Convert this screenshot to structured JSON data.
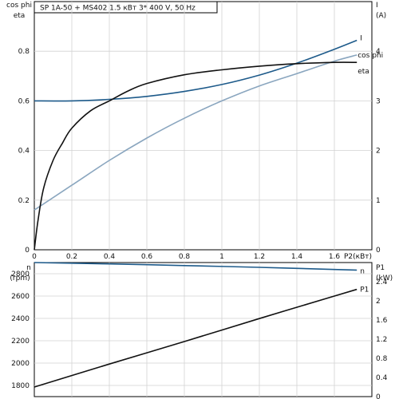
{
  "chart_data": [
    {
      "type": "line",
      "title": "SP 1A-50 + MS402    1.5 кВт   3* 400 V, 50 Hz",
      "xlabel": "P2(кВт)",
      "xlim": [
        0,
        1.8
      ],
      "x_ticks": [
        "0",
        "0.2",
        "0.4",
        "0.6",
        "0.8",
        "1",
        "1.2",
        "1.4",
        "1.6"
      ],
      "y_left": {
        "label_lines": [
          "cos phi",
          "eta"
        ],
        "ylim": [
          0,
          1.0
        ],
        "ticks": [
          "0",
          "0.2",
          "0.4",
          "0.6",
          "0.8"
        ]
      },
      "y_right": {
        "label_lines": [
          "I",
          "(A)"
        ],
        "ylim": [
          0,
          5.0
        ],
        "ticks": [
          "0",
          "1",
          "2",
          "3",
          "4"
        ]
      },
      "grid": true,
      "series": [
        {
          "name": "I",
          "axis": "right",
          "color": "#1d5a8a",
          "x": [
            0,
            0.2,
            0.4,
            0.6,
            0.8,
            1.0,
            1.2,
            1.4,
            1.6,
            1.72
          ],
          "y": [
            3.0,
            3.0,
            3.03,
            3.09,
            3.19,
            3.33,
            3.52,
            3.76,
            4.04,
            4.22
          ]
        },
        {
          "name": "cos phi",
          "axis": "left",
          "color": "#8aa6bf",
          "x": [
            0,
            0.2,
            0.4,
            0.6,
            0.8,
            1.0,
            1.2,
            1.4,
            1.6,
            1.72
          ],
          "y": [
            0.16,
            0.26,
            0.36,
            0.45,
            0.53,
            0.6,
            0.66,
            0.71,
            0.76,
            0.785
          ]
        },
        {
          "name": "eta",
          "axis": "left",
          "color": "#111111",
          "x": [
            0,
            0.02,
            0.05,
            0.1,
            0.15,
            0.2,
            0.3,
            0.4,
            0.5,
            0.6,
            0.8,
            1.0,
            1.2,
            1.4,
            1.6,
            1.72
          ],
          "y": [
            0,
            0.12,
            0.25,
            0.36,
            0.43,
            0.49,
            0.56,
            0.6,
            0.64,
            0.67,
            0.705,
            0.725,
            0.74,
            0.75,
            0.755,
            0.755
          ]
        }
      ]
    },
    {
      "type": "line",
      "xlim": [
        0,
        1.8
      ],
      "y_left": {
        "label_lines": [
          "n",
          "(rpm)"
        ],
        "ylim": [
          1700,
          2900
        ],
        "ticks": [
          "1800",
          "2000",
          "2200",
          "2400",
          "2600",
          "2800"
        ]
      },
      "y_right": {
        "label_lines": [
          "P1",
          "(kW)"
        ],
        "ylim": [
          0,
          2.8
        ],
        "ticks": [
          "0",
          "0.4",
          "0.8",
          "1.2",
          "1.6",
          "2",
          "2.4"
        ]
      },
      "grid": true,
      "series": [
        {
          "name": "n",
          "axis": "left",
          "color": "#1d5a8a",
          "x": [
            0,
            0.4,
            0.8,
            1.2,
            1.6,
            1.72
          ],
          "y": [
            2900,
            2888,
            2873,
            2857,
            2838,
            2832
          ]
        },
        {
          "name": "P1",
          "axis": "right",
          "color": "#111111",
          "x": [
            0,
            0.4,
            0.8,
            1.2,
            1.6,
            1.72
          ],
          "y": [
            0.2,
            0.68,
            1.15,
            1.63,
            2.1,
            2.24
          ]
        }
      ]
    }
  ]
}
